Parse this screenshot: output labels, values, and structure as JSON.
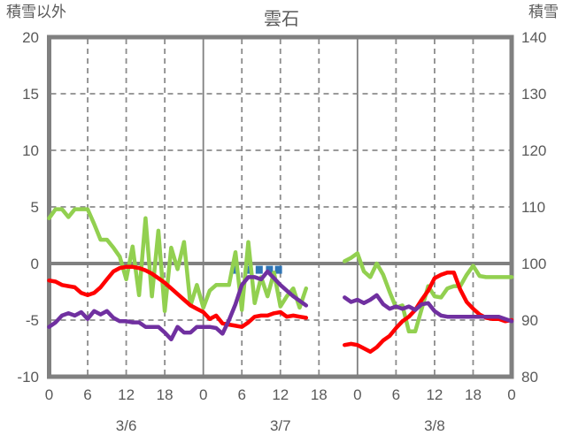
{
  "header": {
    "left_axis_title": "積雪以外",
    "chart_title": "雲石",
    "right_axis_title": "積雪"
  },
  "colors": {
    "background": "#ffffff",
    "border": "#808080",
    "grid": "#8c8c8c",
    "zero_line": "#808080",
    "label_text": "#595959",
    "series_green": "#92D050",
    "series_red": "#FF0000",
    "series_purple": "#7030A0",
    "snow_bar_blue": "#2E75B6"
  },
  "chart_data": {
    "type": "line",
    "title": "雲石",
    "left_axis": {
      "label": "積雪以外",
      "min": -10,
      "max": 20,
      "ticks": [
        20,
        15,
        10,
        5,
        0,
        -5,
        -10
      ]
    },
    "right_axis": {
      "label": "積雪",
      "min": 80,
      "max": 140,
      "ticks": [
        140,
        130,
        120,
        110,
        100,
        90,
        80
      ]
    },
    "x_axis": {
      "hours_total": 72,
      "tick_step_hours": 6,
      "tick_labels": [
        "0",
        "6",
        "12",
        "18",
        "0",
        "6",
        "12",
        "18",
        "0",
        "6",
        "12",
        "18",
        "0"
      ],
      "day_labels": [
        {
          "label": "3/6",
          "center_hour": 12
        },
        {
          "label": "3/7",
          "center_hour": 36
        },
        {
          "label": "3/8",
          "center_hour": 60
        }
      ],
      "day_boundary_hours": [
        24,
        48
      ]
    },
    "grid": {
      "horizontal_dashed_at": [
        15,
        10,
        5,
        -5
      ],
      "zero_line_at": 0,
      "vertical_dashed_every_hours": 6
    },
    "data_gap_hours": [
      41,
      45
    ],
    "series": [
      {
        "name": "green-line",
        "color": "#92D050",
        "axis": "left",
        "values": [
          4.0,
          4.8,
          4.8,
          4.1,
          4.8,
          4.8,
          4.8,
          3.5,
          2.1,
          2.1,
          1.4,
          0.6,
          -1.4,
          1.5,
          -2.8,
          4.0,
          -2.9,
          2.9,
          -4.2,
          1.4,
          -0.5,
          1.9,
          -3.7,
          -1.9,
          -3.9,
          -2.4,
          -1.9,
          -1.9,
          -1.9,
          1.0,
          -4.1,
          1.9,
          -3.5,
          -1.2,
          -2.9,
          -0.8,
          -3.8,
          -2.9,
          -2.2,
          -3.9,
          -2.2,
          null,
          null,
          null,
          null,
          null,
          0.2,
          0.5,
          0.9,
          -0.7,
          -1.2,
          0.0,
          -1.0,
          -2.5,
          -3.9,
          -3.7,
          -6.0,
          -6.0,
          -4.0,
          -2.0,
          -2.9,
          -3.0,
          -2.2,
          -2.0,
          -2.0,
          -1.0,
          -0.2,
          -1.1,
          -1.2,
          -1.2,
          -1.2,
          -1.2,
          -1.2
        ]
      },
      {
        "name": "red-line",
        "color": "#FF0000",
        "axis": "left",
        "values": [
          -1.5,
          -1.6,
          -1.9,
          -2.0,
          -2.1,
          -2.6,
          -2.8,
          -2.6,
          -2.1,
          -1.4,
          -0.7,
          -0.4,
          -0.3,
          -0.3,
          -0.4,
          -0.6,
          -0.9,
          -1.3,
          -1.7,
          -2.2,
          -2.7,
          -3.2,
          -3.7,
          -4.0,
          -4.3,
          -4.9,
          -4.6,
          -5.3,
          -5.4,
          -5.5,
          -5.6,
          -5.2,
          -4.7,
          -4.6,
          -4.6,
          -4.4,
          -4.3,
          -4.7,
          -4.6,
          -4.7,
          -4.8,
          null,
          null,
          null,
          null,
          null,
          -7.2,
          -7.1,
          -7.2,
          -7.5,
          -7.8,
          -7.4,
          -6.8,
          -6.4,
          -5.7,
          -5.1,
          -4.7,
          -4.1,
          -3.2,
          -2.4,
          -1.3,
          -1.0,
          -0.8,
          -0.8,
          -2.3,
          -3.4,
          -4.0,
          -4.5,
          -4.8,
          -4.9,
          -4.9,
          -5.1,
          -5.0
        ]
      },
      {
        "name": "purple-line",
        "color": "#7030A0",
        "axis": "left",
        "values": [
          -5.6,
          -5.2,
          -4.6,
          -4.4,
          -4.6,
          -4.3,
          -4.9,
          -4.2,
          -4.5,
          -4.2,
          -4.8,
          -5.1,
          -5.1,
          -5.2,
          -5.2,
          -5.6,
          -5.6,
          -5.6,
          -6.1,
          -6.7,
          -5.6,
          -6.1,
          -6.1,
          -5.6,
          -5.6,
          -5.6,
          -5.7,
          -6.2,
          -5.0,
          -3.6,
          -1.9,
          -1.2,
          -1.2,
          -1.4,
          -0.7,
          -1.3,
          -1.9,
          -2.4,
          -2.9,
          -3.3,
          -3.7,
          null,
          null,
          null,
          null,
          null,
          -3.0,
          -3.4,
          -3.2,
          -3.5,
          -3.2,
          -2.8,
          -3.6,
          -4.0,
          -3.8,
          -4.0,
          -3.8,
          -4.1,
          -3.6,
          -3.5,
          -4.2,
          -4.6,
          -4.7,
          -4.7,
          -4.7,
          -4.7,
          -4.7,
          -4.7,
          -4.7,
          -4.7,
          -4.7,
          -4.9,
          -5.1
        ]
      }
    ],
    "snow_bars": {
      "name": "snowfall-bars",
      "color": "#2E75B6",
      "axis": "left",
      "top_value": -0.2,
      "bottom_value": -0.9,
      "center_hours": [
        29,
        31,
        32.7,
        34.3,
        35.7
      ],
      "bar_width_hours": 1.1
    }
  }
}
